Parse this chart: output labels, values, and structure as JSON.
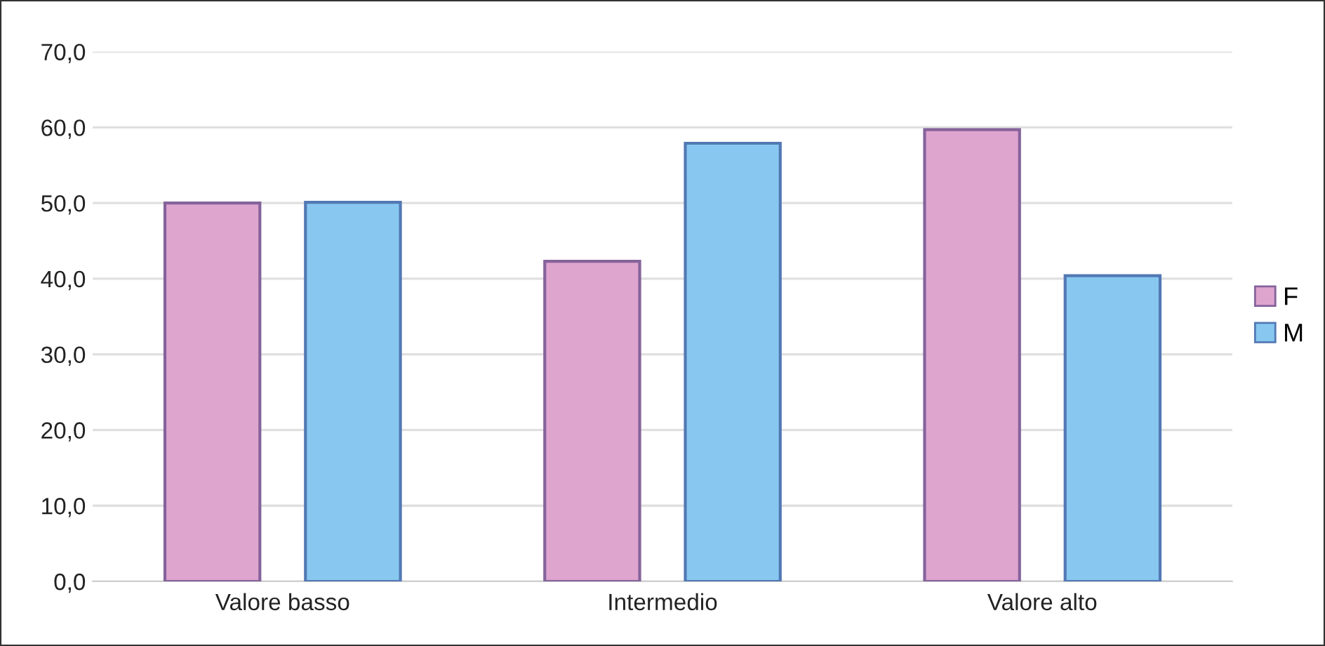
{
  "chart_data": {
    "type": "bar",
    "categories": [
      "Valore basso",
      "Intermedio",
      "Valore alto"
    ],
    "series": [
      {
        "name": "F",
        "color": "#dea5cf",
        "values": [
          50.0,
          42.3,
          59.7
        ]
      },
      {
        "name": "M",
        "color": "#88c8f0",
        "values": [
          50.1,
          57.9,
          40.4
        ]
      }
    ],
    "ylim": [
      0,
      70
    ],
    "yticks": [
      {
        "value": 0,
        "label": "0,0"
      },
      {
        "value": 10,
        "label": "10,0"
      },
      {
        "value": 20,
        "label": "20,0"
      },
      {
        "value": 30,
        "label": "30,0"
      },
      {
        "value": 40,
        "label": "40,0"
      },
      {
        "value": 50,
        "label": "50,0"
      },
      {
        "value": 60,
        "label": "60,0"
      },
      {
        "value": 70,
        "label": "70,0"
      }
    ],
    "grid": "y",
    "legend": "right"
  }
}
